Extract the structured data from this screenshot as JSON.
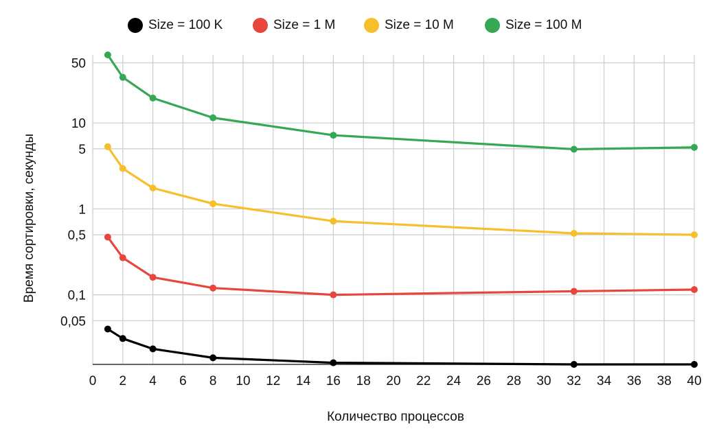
{
  "chart_data": {
    "type": "line",
    "xlabel": "Количество процессов",
    "ylabel": "Время сортировки, секунды",
    "yscale": "log",
    "grid": true,
    "legend_position": "top",
    "xlim": [
      0,
      40
    ],
    "ylim": [
      0.0155,
      62
    ],
    "x_ticks": [
      0,
      2,
      4,
      6,
      8,
      10,
      12,
      14,
      16,
      18,
      20,
      22,
      24,
      26,
      28,
      30,
      32,
      34,
      36,
      38,
      40
    ],
    "x_tick_labels": [
      "0",
      "2",
      "4",
      "6",
      "8",
      "10",
      "12",
      "14",
      "16",
      "18",
      "20",
      "22",
      "24",
      "26",
      "28",
      "30",
      "32",
      "34",
      "36",
      "38",
      "40"
    ],
    "y_ticks": [
      0.05,
      0.1,
      0.5,
      1,
      5,
      10,
      50
    ],
    "y_tick_labels": [
      "0,05",
      "0,1",
      "0,5",
      "1",
      "5",
      "10",
      "50"
    ],
    "x": [
      1,
      2,
      4,
      8,
      16,
      32,
      40
    ],
    "series": [
      {
        "name": "Size = 100 K",
        "color": "#000000",
        "values": [
          0.04,
          0.031,
          0.0235,
          0.0185,
          0.0162,
          0.0155,
          0.0155
        ]
      },
      {
        "name": "Size = 1 M",
        "color": "#e8453c",
        "values": [
          0.47,
          0.27,
          0.16,
          0.12,
          0.1,
          0.11,
          0.115
        ]
      },
      {
        "name": "Size = 10 M",
        "color": "#f6bf2b",
        "values": [
          5.3,
          2.95,
          1.75,
          1.15,
          0.72,
          0.52,
          0.5
        ]
      },
      {
        "name": "Size = 100 M",
        "color": "#34a853",
        "values": [
          62,
          34,
          19.5,
          11.5,
          7.2,
          4.95,
          5.2
        ]
      }
    ]
  }
}
